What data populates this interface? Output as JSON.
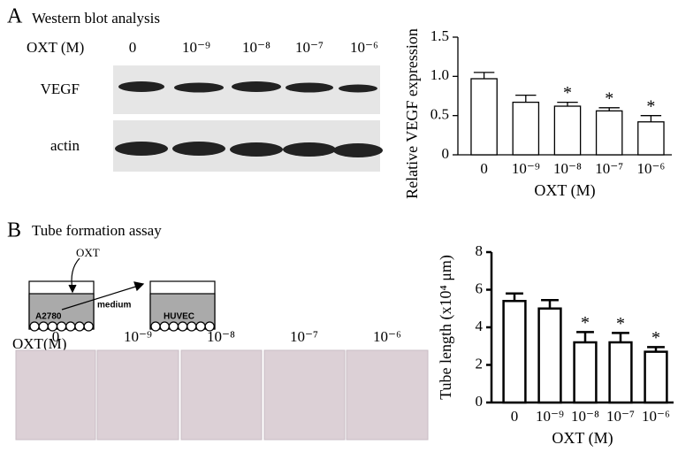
{
  "panel_a": {
    "letter": "A",
    "title": "Western blot analysis",
    "treatment": "OXT (M)",
    "lanes": [
      "0",
      "10⁻⁹",
      "10⁻⁸",
      "10⁻⁷",
      "10⁻⁶"
    ],
    "rows": [
      "VEGF",
      "actin"
    ]
  },
  "panel_b": {
    "letter": "B",
    "title": "Tube formation assay",
    "drug": "OXT",
    "donor_cells": "A2780",
    "transfer": "medium",
    "recipient_cells": "HUVEC",
    "treatment": "OXT(M)",
    "lanes": [
      "0",
      "10⁻⁹",
      "10⁻⁸",
      "10⁻⁷",
      "10⁻⁶"
    ]
  },
  "chart_data": [
    {
      "type": "bar",
      "y_label": "Relative VEGF expression",
      "x_label": "OXT (M)",
      "categories": [
        "0",
        "10⁻⁹",
        "10⁻⁸",
        "10⁻⁷",
        "10⁻⁶"
      ],
      "values": [
        0.97,
        0.67,
        0.62,
        0.56,
        0.42
      ],
      "errors": [
        0.08,
        0.09,
        0.05,
        0.04,
        0.08
      ],
      "significance": [
        null,
        null,
        "*",
        "*",
        "*"
      ],
      "ylim": [
        0,
        1.5
      ],
      "yticks": [
        0,
        0.5,
        {
          "value": 1,
          "label": "1.0"
        },
        1.5
      ],
      "color": "#ffffff"
    },
    {
      "type": "bar",
      "y_label": "Tube length (x10⁴ μm)",
      "x_label": "OXT (M)",
      "categories": [
        "0",
        "10⁻⁹",
        "10⁻⁸",
        "10⁻⁷",
        "10⁻⁶"
      ],
      "values": [
        5.4,
        5.0,
        3.2,
        3.2,
        2.7
      ],
      "errors": [
        0.4,
        0.45,
        0.55,
        0.5,
        0.25
      ],
      "significance": [
        null,
        null,
        "*",
        "*",
        "*"
      ],
      "ylim": [
        0,
        8
      ],
      "yticks": [
        0,
        2,
        4,
        6,
        8
      ],
      "color": "#ffffff"
    }
  ]
}
